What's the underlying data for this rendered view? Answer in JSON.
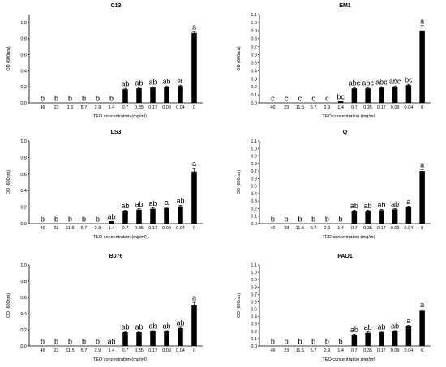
{
  "chart_data": [
    {
      "type": "bar",
      "title": "C13",
      "categories": [
        "46",
        "23",
        "1.5",
        "5.7",
        "2.9",
        "1.4",
        "0.7",
        "0.35",
        "0.17",
        "0.09",
        "0.04",
        "0"
      ],
      "values": [
        0.0,
        0.0,
        0.0,
        0.0,
        0.0,
        0.0,
        0.17,
        0.18,
        0.19,
        0.2,
        0.21,
        0.87
      ],
      "errors": [
        0,
        0,
        0,
        0,
        0,
        0,
        0.01,
        0.01,
        0.01,
        0.01,
        0.01,
        0.02
      ],
      "labels": [
        "b",
        "b",
        "b",
        "b",
        "b",
        "b",
        "ab",
        "ab",
        "ab",
        "ab",
        "a",
        "a"
      ],
      "xlabel": "TEO concentration (mg/ml)",
      "ylabel": "OD (600nm)",
      "ylim": [
        0,
        1.1
      ],
      "yticks": [
        "0.0",
        "0.2",
        "0.4",
        "0.6",
        "0.8",
        "1.0"
      ]
    },
    {
      "type": "bar",
      "title": "EM1",
      "categories": [
        "46",
        "23",
        "11.5",
        "5.7",
        "2.9",
        "1.4",
        "0.7",
        "0.35",
        "0.17",
        "0.09",
        "0.04",
        "0"
      ],
      "values": [
        0.0,
        0.0,
        0.0,
        0.0,
        0.0,
        0.02,
        0.18,
        0.18,
        0.19,
        0.2,
        0.22,
        0.9
      ],
      "errors": [
        0,
        0,
        0,
        0,
        0,
        0,
        0.01,
        0.01,
        0.01,
        0.01,
        0.01,
        0.06
      ],
      "labels": [
        "c",
        "c",
        "c",
        "c",
        "c",
        "bc",
        "abc",
        "abc",
        "abc",
        "abc",
        "bc",
        "a"
      ],
      "xlabel": "TEO concentration (mg/ml)",
      "ylabel": "OD (600nm)",
      "ylim": [
        0,
        1.1
      ],
      "yticks": [
        "0.0",
        "0.1",
        "0.2",
        "0.3",
        "0.4",
        "0.5",
        "0.6",
        "0.7",
        "0.8",
        "0.9",
        "1.0",
        "1.1"
      ]
    },
    {
      "type": "bar",
      "title": "LS3",
      "categories": [
        "46",
        "23",
        "11.5",
        "5.7",
        "2.9",
        "1.4",
        "0.7",
        "0.35",
        "0.17",
        "0.09",
        "0.04",
        "0"
      ],
      "values": [
        0.0,
        0.0,
        0.0,
        0.0,
        0.0,
        0.03,
        0.15,
        0.17,
        0.18,
        0.19,
        0.21,
        0.63
      ],
      "errors": [
        0,
        0,
        0,
        0,
        0,
        0,
        0.01,
        0.01,
        0.01,
        0.01,
        0.01,
        0.04
      ],
      "labels": [
        "b",
        "b",
        "b",
        "b",
        "b",
        "ab",
        "ab",
        "ab",
        "ab",
        "a",
        "ab",
        "a"
      ],
      "xlabel": "TEO concentration (mg/ml)",
      "ylabel": "OD (600nm)",
      "ylim": [
        0,
        1.0
      ],
      "yticks": [
        "0.0",
        "0.2",
        "0.4",
        "0.6",
        "0.8",
        "1.0"
      ]
    },
    {
      "type": "bar",
      "title": "Q",
      "categories": [
        "46",
        "23",
        "11.5",
        "5.7",
        "2.9",
        "1.4",
        "0.7",
        "0.35",
        "0.17",
        "0.09",
        "0.04",
        "0"
      ],
      "values": [
        0.0,
        0.0,
        0.0,
        0.0,
        0.0,
        0.0,
        0.17,
        0.17,
        0.18,
        0.19,
        0.22,
        0.7
      ],
      "errors": [
        0,
        0,
        0,
        0,
        0,
        0,
        0.01,
        0.01,
        0.01,
        0.01,
        0.01,
        0.02
      ],
      "labels": [
        "b",
        "b",
        "b",
        "b",
        "b",
        "b",
        "ab",
        "ab",
        "ab",
        "ab",
        "a",
        "a"
      ],
      "xlabel": "TEO concentration (mg/ml)",
      "ylabel": "OD (600nm)",
      "ylim": [
        0,
        1.1
      ],
      "yticks": [
        "0.0",
        "0.1",
        "0.2",
        "0.3",
        "0.4",
        "0.5",
        "0.6",
        "0.7",
        "0.8",
        "0.9",
        "1.0",
        "1.1"
      ]
    },
    {
      "type": "bar",
      "title": "B076",
      "categories": [
        "46",
        "23",
        "11.5",
        "5.7",
        "2.9",
        "1.4",
        "0.7",
        "0.35",
        "0.17",
        "0.09",
        "0.04",
        "0"
      ],
      "values": [
        0.0,
        0.0,
        0.0,
        0.0,
        0.0,
        0.0,
        0.17,
        0.17,
        0.18,
        0.18,
        0.22,
        0.5
      ],
      "errors": [
        0,
        0,
        0,
        0,
        0,
        0,
        0.01,
        0.01,
        0.01,
        0.01,
        0.01,
        0.04
      ],
      "labels": [
        "b",
        "b",
        "b",
        "b",
        "b",
        "ab",
        "ab",
        "ab",
        "ab",
        "ab",
        "ab",
        "a"
      ],
      "xlabel": "TEO concentration (mg/ml)",
      "ylabel": "OD (600nm)",
      "ylim": [
        0,
        1.0
      ],
      "yticks": [
        "0.0",
        "0.2",
        "0.4",
        "0.6",
        "0.8",
        "1.0"
      ]
    },
    {
      "type": "bar",
      "title": "PAO1",
      "categories": [
        "46",
        "23",
        "11.5",
        "5.7",
        "2.9",
        "1.4",
        "0.7",
        "0.35",
        "0.17",
        "0.09",
        "0.04",
        "0"
      ],
      "values": [
        0.0,
        0.0,
        0.0,
        0.0,
        0.0,
        0.0,
        0.15,
        0.18,
        0.19,
        0.2,
        0.27,
        0.48
      ],
      "errors": [
        0,
        0,
        0,
        0,
        0,
        0,
        0.01,
        0.01,
        0.01,
        0.01,
        0.01,
        0.02
      ],
      "labels": [
        "b",
        "b",
        "b",
        "b",
        "b",
        "b",
        "ab",
        "ab",
        "ab",
        "ab",
        "a",
        "a"
      ],
      "xlabel": "TEO concentration (mg/ml)",
      "ylabel": "OD (600nm)",
      "ylim": [
        0,
        1.1
      ],
      "yticks": [
        "0.0",
        "0.1",
        "0.2",
        "0.3",
        "0.4",
        "0.5",
        "0.6",
        "0.7",
        "0.8",
        "0.9",
        "1.0",
        "1.1"
      ]
    }
  ]
}
